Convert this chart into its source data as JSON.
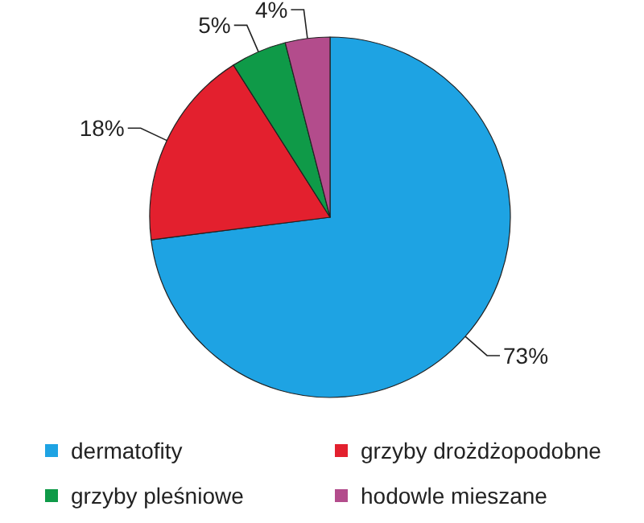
{
  "chart_data": {
    "type": "pie",
    "categories": [
      "dermatofity",
      "grzyby drożdżopodobne",
      "grzyby pleśniowe",
      "hodowle mieszane"
    ],
    "values": [
      73,
      18,
      5,
      4
    ],
    "colors": [
      "#1ea3e3",
      "#e3202e",
      "#0f9a48",
      "#b34c8c"
    ],
    "value_labels": [
      "73%",
      "18%",
      "5%",
      "4%"
    ],
    "legend": "bottom"
  }
}
